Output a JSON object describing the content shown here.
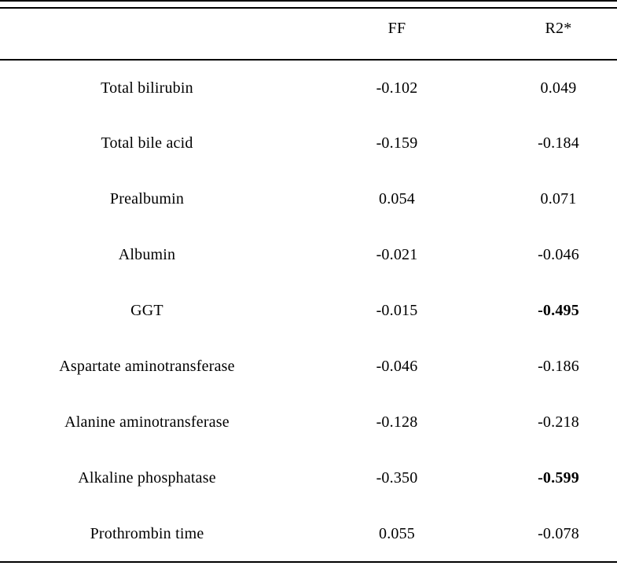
{
  "table": {
    "columns": [
      "",
      "FF",
      "R2*"
    ],
    "rows": [
      {
        "label": "Total bilirubin",
        "ff": "-0.102",
        "r2": "0.049",
        "r2_bold": false
      },
      {
        "label": "Total bile acid",
        "ff": "-0.159",
        "r2": "-0.184",
        "r2_bold": false
      },
      {
        "label": "Prealbumin",
        "ff": "0.054",
        "r2": "0.071",
        "r2_bold": false
      },
      {
        "label": "Albumin",
        "ff": "-0.021",
        "r2": "-0.046",
        "r2_bold": false
      },
      {
        "label": "GGT",
        "ff": "-0.015",
        "r2": "-0.495",
        "r2_bold": true
      },
      {
        "label": "Aspartate aminotransferase",
        "ff": "-0.046",
        "r2": "-0.186",
        "r2_bold": false
      },
      {
        "label": "Alanine aminotransferase",
        "ff": "-0.128",
        "r2": "-0.218",
        "r2_bold": false
      },
      {
        "label": "Alkaline phosphatase",
        "ff": "-0.350",
        "r2": "-0.599",
        "r2_bold": true
      },
      {
        "label": "Prothrombin time",
        "ff": "0.055",
        "r2": "-0.078",
        "r2_bold": false
      }
    ],
    "colors": {
      "rule": "#000000",
      "text": "#000000",
      "background": "#ffffff"
    }
  }
}
